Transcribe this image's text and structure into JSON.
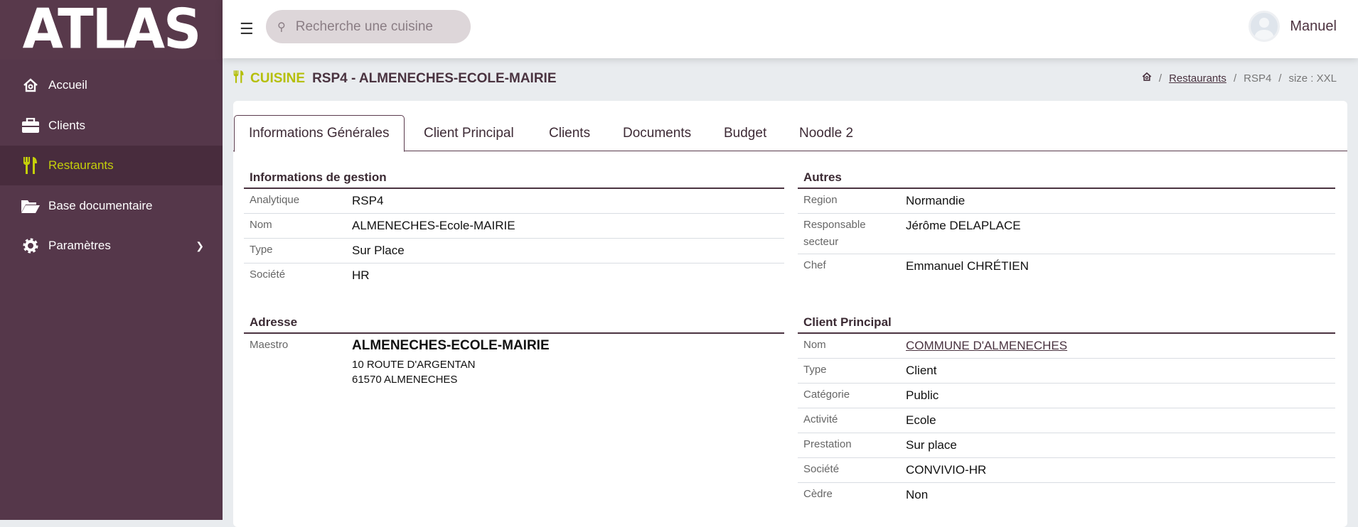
{
  "app": {
    "logo": "ATLAS"
  },
  "sidebar": {
    "items": [
      {
        "label": "Accueil",
        "icon": "home-icon"
      },
      {
        "label": "Clients",
        "icon": "briefcase-icon"
      },
      {
        "label": "Restaurants",
        "icon": "utensils-icon",
        "active": true
      },
      {
        "label": "Base documentaire",
        "icon": "folder-open-icon"
      },
      {
        "label": "Paramètres",
        "icon": "gear-icon",
        "has_submenu": true
      }
    ]
  },
  "header": {
    "search_placeholder": "Recherche une cuisine",
    "user": "Manuel"
  },
  "page": {
    "kind": "CUISINE",
    "title": "RSP4 - ALMENECHES-ECOLE-MAIRIE"
  },
  "breadcrumb": {
    "items": [
      "Restaurants",
      "RSP4",
      "size : XXL"
    ]
  },
  "tabs": [
    "Informations Générales",
    "Client Principal",
    "Clients",
    "Documents",
    "Budget",
    "Noodle 2"
  ],
  "gestion": {
    "title": "Informations de gestion",
    "rows": [
      {
        "label": "Analytique",
        "value": "RSP4"
      },
      {
        "label": "Nom",
        "value": "ALMENECHES-Ecole-MAIRIE"
      },
      {
        "label": "Type",
        "value": "Sur Place"
      },
      {
        "label": "Société",
        "value": "HR"
      }
    ]
  },
  "autres": {
    "title": "Autres",
    "rows": [
      {
        "label": "Region",
        "value": "Normandie"
      },
      {
        "label": "Responsable secteur",
        "value": "Jérôme DELAPLACE"
      },
      {
        "label": "Chef",
        "value": "Emmanuel CHRÉTIEN"
      }
    ]
  },
  "adresse": {
    "title": "Adresse",
    "label": "Maestro",
    "name": "ALMENECHES-ECOLE-MAIRIE",
    "line1": "10 ROUTE D'ARGENTAN",
    "line2": "61570 ALMENECHES"
  },
  "client_principal": {
    "title": "Client Principal",
    "rows": [
      {
        "label": "Nom",
        "value": "COMMUNE D'ALMENECHES",
        "link": true
      },
      {
        "label": "Type",
        "value": "Client"
      },
      {
        "label": "Catégorie",
        "value": "Public"
      },
      {
        "label": "Activité",
        "value": "Ecole"
      },
      {
        "label": "Prestation",
        "value": "Sur place"
      },
      {
        "label": "Société",
        "value": "CONVIVIO-HR"
      },
      {
        "label": "Cèdre",
        "value": "Non"
      }
    ]
  },
  "colors": {
    "sidebar": "#55374a",
    "accent": "#c4cf0a",
    "text": "#4a3340"
  }
}
